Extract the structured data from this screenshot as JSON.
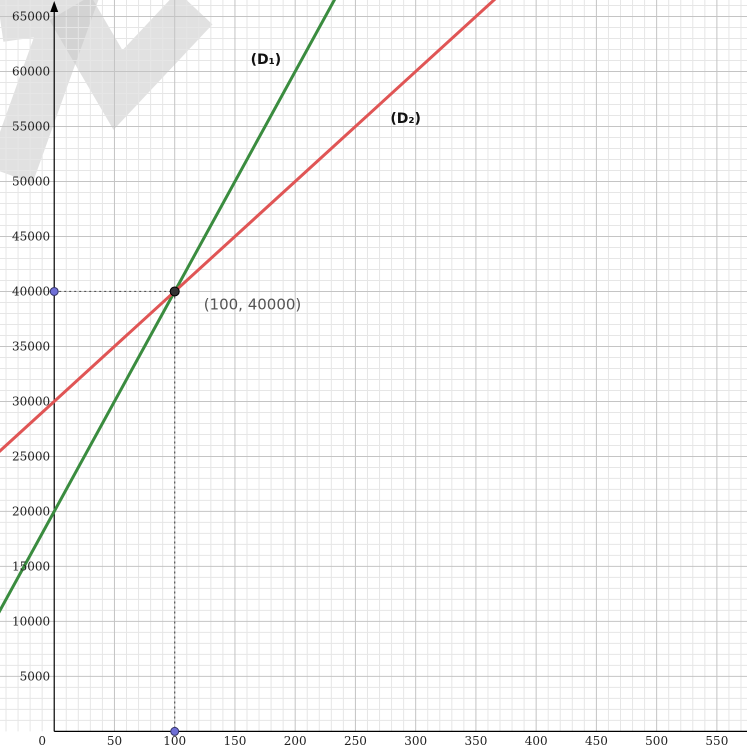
{
  "chart_data": {
    "type": "line",
    "xlim": [
      -45,
      575
    ],
    "ylim": [
      -1600,
      66500
    ],
    "x_ticks": [
      0,
      50,
      100,
      150,
      200,
      250,
      300,
      350,
      400,
      450,
      500,
      550
    ],
    "x_tick_labels": [
      "0",
      "50",
      "100",
      "150",
      "200",
      "250",
      "300",
      "350",
      "400",
      "450",
      "500",
      "550"
    ],
    "y_ticks": [
      5000,
      10000,
      15000,
      20000,
      25000,
      30000,
      35000,
      40000,
      45000,
      50000,
      55000,
      60000,
      65000
    ],
    "y_tick_labels": [
      "5000",
      "10000",
      "15000",
      "20000",
      "25000",
      "30000",
      "35000",
      "40000",
      "45000",
      "50000",
      "55000",
      "60000",
      "65000"
    ],
    "major_grid_step": {
      "x": 50,
      "y": 5000
    },
    "minor_grid_step": {
      "x": 10,
      "y": 1000
    },
    "grid": true,
    "series": [
      {
        "name": "(D₁)",
        "slope": 200,
        "intercept": 20000,
        "color": "#3a8c3f",
        "x_range": [
          -50,
          240
        ]
      },
      {
        "name": "(D₂)",
        "slope": 100,
        "intercept": 30000,
        "color": "#e05555",
        "x_range": [
          -50,
          370
        ]
      }
    ],
    "series_labels": [
      {
        "text": "(D₁)",
        "x": 163,
        "y": 60700
      },
      {
        "text": "(D₂)",
        "x": 279,
        "y": 55300
      }
    ],
    "intersection": {
      "x": 100,
      "y": 40000,
      "label": "(100, 40000)",
      "color": "#333333"
    },
    "projection_points": [
      {
        "x": 0,
        "y": 40000,
        "color": "#6f6fd6"
      },
      {
        "x": 100,
        "y": 0,
        "color": "#6f6fd6"
      }
    ],
    "origin_label": "0",
    "watermark_color": "#c8c8c8",
    "axis_color": "#000000",
    "major_grid_color": "#c4c4c4",
    "minor_grid_color": "#e6e6e6"
  }
}
